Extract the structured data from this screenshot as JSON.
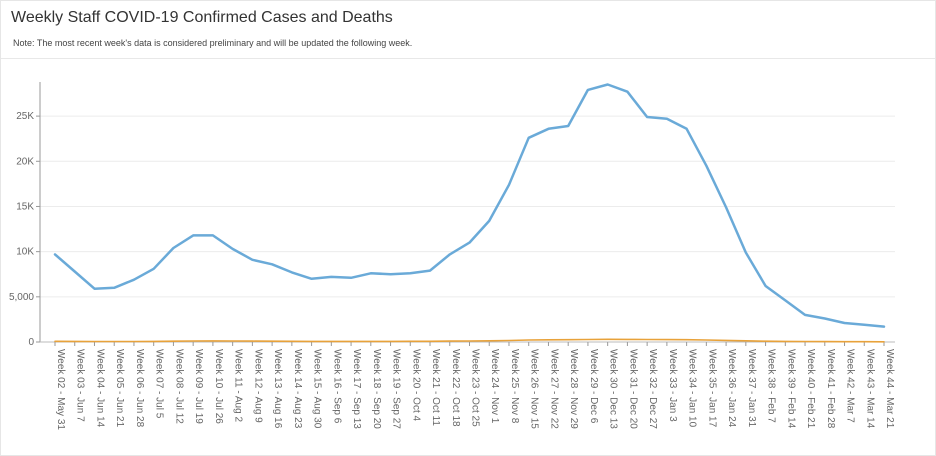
{
  "header": {
    "title": "Weekly Staff COVID-19 Confirmed Cases and Deaths",
    "note": "Note: The most recent week's data is considered preliminary and will be updated the following week."
  },
  "chart_data": {
    "type": "line",
    "title": "Weekly Staff COVID-19 Confirmed Cases and Deaths",
    "xlabel": "",
    "ylabel": "",
    "ylim": [
      0,
      28000
    ],
    "yticks": [
      0,
      5000,
      10000,
      15000,
      20000,
      25000
    ],
    "ytick_labels": [
      "0",
      "5,000",
      "10K",
      "15K",
      "20K",
      "25K"
    ],
    "grid": true,
    "legend": "none",
    "categories": [
      "Week 02 - May 31",
      "Week 03 - Jun 7",
      "Week 04 - Jun 14",
      "Week 05 - Jun 21",
      "Week 06 - Jun 28",
      "Week 07 - Jul 5",
      "Week 08 - Jul 12",
      "Week 09 - Jul 19",
      "Week 10 - Jul 26",
      "Week 11 - Aug 2",
      "Week 12 - Aug 9",
      "Week 13 - Aug 16",
      "Week 14 - Aug 23",
      "Week 15 - Aug 30",
      "Week 16 - Sep 6",
      "Week 17 - Sep 13",
      "Week 18 - Sep 20",
      "Week 19 - Sep 27",
      "Week 20 - Oct 4",
      "Week 21 - Oct 11",
      "Week 22 - Oct 18",
      "Week 23 - Oct 25",
      "Week 24 - Nov 1",
      "Week 25 - Nov 8",
      "Week 26 - Nov 15",
      "Week 27 - Nov 22",
      "Week 28 - Nov 29",
      "Week 29 - Dec 6",
      "Week 30 - Dec 13",
      "Week 31 - Dec 20",
      "Week 32 - Dec 27",
      "Week 33 - Jan 3",
      "Week 34 - Jan 10",
      "Week 35 - Jan 17",
      "Week 36 - Jan 24",
      "Week 37 - Jan 31",
      "Week 38 - Feb 7",
      "Week 39 - Feb 14",
      "Week 40 - Feb 21",
      "Week 41 - Feb 28",
      "Week 42 - Mar 7",
      "Week 43 - Mar 14",
      "Week 44 - Mar 21"
    ],
    "series": [
      {
        "color": "#6aaad8",
        "values": [
          9700,
          7800,
          5900,
          6000,
          6900,
          8100,
          10400,
          11800,
          11800,
          10300,
          9100,
          8600,
          7700,
          7000,
          7200,
          7100,
          7600,
          7500,
          7600,
          7900,
          9700,
          11000,
          13400,
          17400,
          22600,
          23600,
          23900,
          27900,
          28500,
          27700,
          24900,
          24700,
          23600,
          19500,
          14900,
          9900,
          6200,
          4600,
          3000,
          2600,
          2100,
          1900,
          1700
        ]
      },
      {
        "color": "#e8a23a",
        "values": [
          80,
          70,
          60,
          50,
          60,
          70,
          90,
          110,
          120,
          110,
          100,
          90,
          80,
          70,
          70,
          70,
          70,
          70,
          80,
          80,
          100,
          110,
          130,
          170,
          220,
          240,
          250,
          280,
          300,
          290,
          280,
          270,
          260,
          220,
          180,
          130,
          90,
          70,
          50,
          40,
          35,
          30,
          25
        ]
      }
    ]
  }
}
